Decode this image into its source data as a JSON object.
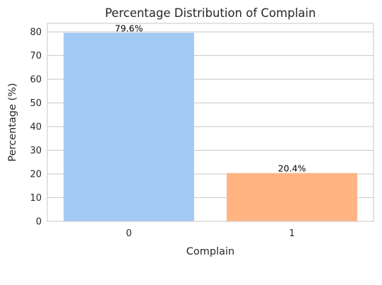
{
  "chart_data": {
    "type": "bar",
    "title": "Percentage Distribution of Complain",
    "xlabel": "Complain",
    "ylabel": "Percentage (%)",
    "categories": [
      "0",
      "1"
    ],
    "values": [
      79.6,
      20.4
    ],
    "data_labels": [
      "79.6%",
      "20.4%"
    ],
    "colors": [
      "#a1c9f4",
      "#ffb482"
    ],
    "ylim": [
      0,
      83.6
    ],
    "yticks": [
      0,
      10,
      20,
      30,
      40,
      50,
      60,
      70,
      80
    ],
    "grid": "horizontal",
    "legend": "none"
  }
}
